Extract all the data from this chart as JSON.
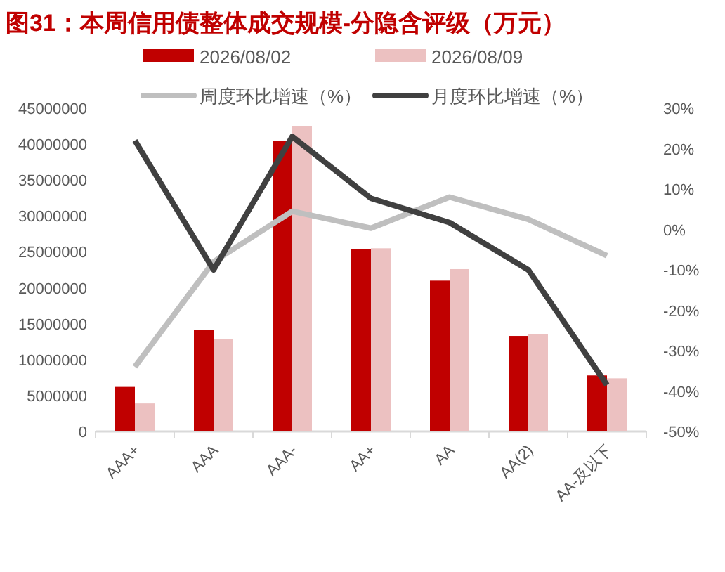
{
  "chart_data": {
    "type": "bar",
    "title": "图31：本周信用债整体成交规模-分隐含评级（万元）",
    "categories": [
      "AAA+",
      "AAA",
      "AAA-",
      "AA+",
      "AA",
      "AA(2)",
      "AA-及以下"
    ],
    "series": [
      {
        "name": "2026/08/02",
        "color": "#c00000",
        "values": [
          6200000,
          14100000,
          40500000,
          25400000,
          21000000,
          13300000,
          7800000
        ]
      },
      {
        "name": "2026/08/09",
        "color": "#ecc1c1",
        "values": [
          3900000,
          12900000,
          42500000,
          25500000,
          22600000,
          13500000,
          7400000
        ]
      },
      {
        "name": "周度环比增速（%）",
        "type": "line",
        "axis": "y2",
        "color": "#bfbfbf",
        "values": [
          -34,
          -8,
          4.5,
          0.3,
          8,
          2.5,
          -6.5
        ]
      },
      {
        "name": "月度环比增速（%）",
        "type": "line",
        "axis": "y2",
        "color": "#404040",
        "values": [
          22,
          -10,
          23,
          7.7,
          1.7,
          -10,
          -38.5
        ]
      }
    ],
    "ylim": [
      0,
      45000000
    ],
    "yticks": [
      0,
      5000000,
      10000000,
      15000000,
      20000000,
      25000000,
      30000000,
      35000000,
      40000000,
      45000000
    ],
    "y2lim": [
      -50,
      30
    ],
    "y2ticks": [
      {
        "value": -50,
        "label": "-50%"
      },
      {
        "value": -40,
        "label": "-40%"
      },
      {
        "value": -30,
        "label": "-30%"
      },
      {
        "value": -20,
        "label": "-20%"
      },
      {
        "value": -10,
        "label": "-10%"
      },
      {
        "value": 0,
        "label": "0%"
      },
      {
        "value": 10,
        "label": "10%"
      },
      {
        "value": 20,
        "label": "20%"
      },
      {
        "value": 30,
        "label": "30%"
      }
    ],
    "legend": "top",
    "grid": false
  }
}
